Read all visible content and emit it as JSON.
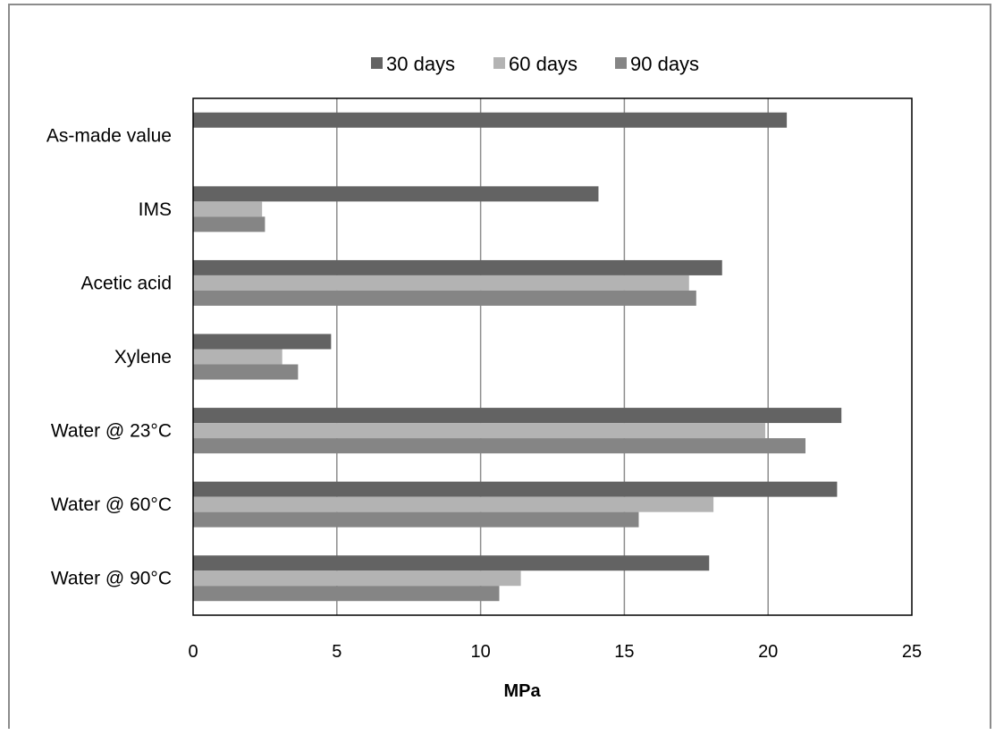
{
  "chart_data": {
    "type": "bar",
    "orientation": "horizontal",
    "title": "",
    "xlabel": "MPa",
    "ylabel": "",
    "xlim": [
      0,
      25
    ],
    "x_ticks": [
      "0",
      "5",
      "10",
      "15",
      "20",
      "25"
    ],
    "grid": "vertical",
    "legend_position": "top",
    "categories": [
      "As-made value",
      "IMS",
      "Acetic acid",
      "Xylene",
      "Water @ 23°C",
      "Water @ 60°C",
      "Water @ 90°C"
    ],
    "series": [
      {
        "name": "30 days",
        "color": "#636363",
        "values": [
          20.65,
          14.1,
          18.4,
          4.8,
          22.55,
          22.4,
          17.95
        ]
      },
      {
        "name": "60 days",
        "color": "#b3b3b3",
        "values": [
          null,
          2.4,
          17.25,
          3.1,
          19.9,
          18.1,
          11.4
        ]
      },
      {
        "name": "90 days",
        "color": "#858585",
        "values": [
          null,
          2.5,
          17.5,
          3.65,
          21.3,
          15.5,
          10.65
        ]
      }
    ]
  }
}
